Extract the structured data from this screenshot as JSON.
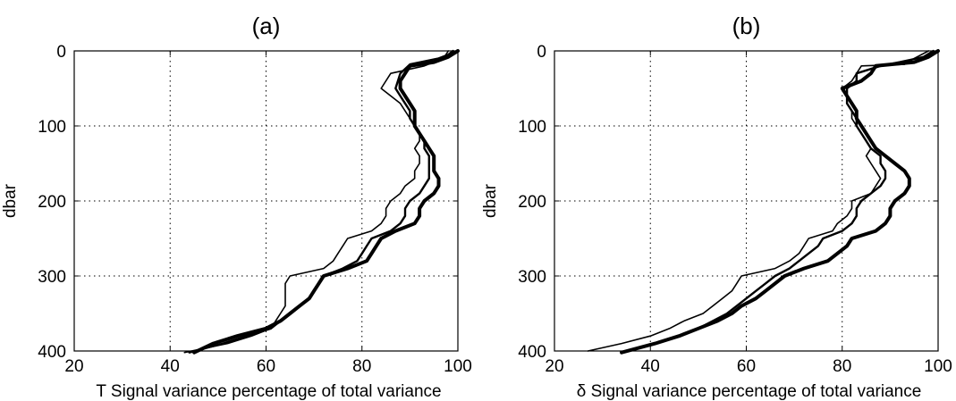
{
  "chart_data": [
    {
      "type": "line",
      "title": "(a)",
      "xlabel": "T Signal variance percentage of total variance",
      "ylabel": "dbar",
      "xlim": [
        20,
        100
      ],
      "ylim": [
        0,
        400
      ],
      "y_reversed": true,
      "grid": true,
      "grid_style": "dotted",
      "x_ticks": [
        "20",
        "40",
        "60",
        "80",
        "100"
      ],
      "y_ticks": [
        "0",
        "100",
        "200",
        "300",
        "400"
      ],
      "series": [
        {
          "style": "thin",
          "values": [
            [
              98,
              0
            ],
            [
              97,
              10
            ],
            [
              93,
              20
            ],
            [
              86,
              30
            ],
            [
              84,
              50
            ],
            [
              86,
              60
            ],
            [
              88,
              70
            ],
            [
              89,
              80
            ],
            [
              90,
              90
            ],
            [
              91,
              100
            ],
            [
              92,
              110
            ],
            [
              92,
              120
            ],
            [
              91,
              130
            ],
            [
              92,
              140
            ],
            [
              92,
              150
            ],
            [
              91,
              160
            ],
            [
              91,
              170
            ],
            [
              89,
              180
            ],
            [
              88,
              190
            ],
            [
              86,
              200
            ],
            [
              85,
              210
            ],
            [
              85,
              220
            ],
            [
              84,
              230
            ],
            [
              82,
              240
            ],
            [
              77,
              250
            ],
            [
              76,
              260
            ],
            [
              75,
              270
            ],
            [
              74,
              280
            ],
            [
              72,
              290
            ],
            [
              65,
              300
            ],
            [
              64,
              310
            ],
            [
              64,
              320
            ],
            [
              64,
              330
            ],
            [
              64,
              340
            ],
            [
              63,
              350
            ],
            [
              62,
              360
            ],
            [
              61,
              370
            ],
            [
              57,
              380
            ],
            [
              52,
              390
            ],
            [
              43,
              402
            ]
          ]
        },
        {
          "style": "medium",
          "values": [
            [
              99,
              0
            ],
            [
              98,
              5
            ],
            [
              96,
              10
            ],
            [
              90,
              18
            ],
            [
              88,
              30
            ],
            [
              87,
              50
            ],
            [
              88,
              60
            ],
            [
              89,
              70
            ],
            [
              90,
              80
            ],
            [
              90,
              90
            ],
            [
              91,
              100
            ],
            [
              92,
              110
            ],
            [
              93,
              120
            ],
            [
              93,
              130
            ],
            [
              94,
              140
            ],
            [
              94,
              150
            ],
            [
              94,
              160
            ],
            [
              94,
              170
            ],
            [
              93,
              180
            ],
            [
              92,
              190
            ],
            [
              90,
              200
            ],
            [
              89,
              210
            ],
            [
              89,
              220
            ],
            [
              88,
              230
            ],
            [
              86,
              240
            ],
            [
              82,
              250
            ],
            [
              81,
              260
            ],
            [
              80,
              270
            ],
            [
              79,
              280
            ],
            [
              76,
              290
            ],
            [
              72,
              300
            ],
            [
              71,
              310
            ],
            [
              70,
              320
            ],
            [
              69,
              330
            ],
            [
              67,
              340
            ],
            [
              65,
              350
            ],
            [
              63,
              360
            ],
            [
              61,
              370
            ],
            [
              56,
              380
            ],
            [
              51,
              390
            ],
            [
              44,
              402
            ]
          ]
        },
        {
          "style": "thick",
          "values": [
            [
              100,
              0
            ],
            [
              98,
              8
            ],
            [
              95,
              15
            ],
            [
              90,
              20
            ],
            [
              89,
              30
            ],
            [
              88,
              40
            ],
            [
              88,
              50
            ],
            [
              89,
              60
            ],
            [
              90,
              70
            ],
            [
              91,
              80
            ],
            [
              91,
              90
            ],
            [
              91,
              100
            ],
            [
              92,
              110
            ],
            [
              93,
              120
            ],
            [
              94,
              130
            ],
            [
              95,
              140
            ],
            [
              95,
              150
            ],
            [
              95,
              160
            ],
            [
              96,
              170
            ],
            [
              96,
              180
            ],
            [
              95,
              190
            ],
            [
              93,
              200
            ],
            [
              92,
              210
            ],
            [
              92,
              220
            ],
            [
              91,
              230
            ],
            [
              87,
              240
            ],
            [
              84,
              250
            ],
            [
              83,
              260
            ],
            [
              82,
              270
            ],
            [
              81,
              280
            ],
            [
              77,
              290
            ],
            [
              72,
              300
            ],
            [
              71,
              310
            ],
            [
              70,
              320
            ],
            [
              69,
              330
            ],
            [
              67,
              340
            ],
            [
              65,
              350
            ],
            [
              63,
              360
            ],
            [
              60,
              370
            ],
            [
              54,
              380
            ],
            [
              49,
              390
            ],
            [
              45,
              402
            ]
          ]
        }
      ]
    },
    {
      "type": "line",
      "title": "(b)",
      "xlabel": "δ Signal variance percentage of total variance",
      "ylabel": "dbar",
      "xlim": [
        20,
        100
      ],
      "ylim": [
        0,
        400
      ],
      "y_reversed": true,
      "grid": true,
      "grid_style": "dotted",
      "x_ticks": [
        "20",
        "40",
        "60",
        "80",
        "100"
      ],
      "y_ticks": [
        "0",
        "100",
        "200",
        "300",
        "400"
      ],
      "series": [
        {
          "style": "thin",
          "values": [
            [
              98,
              0
            ],
            [
              95,
              10
            ],
            [
              93,
              18
            ],
            [
              84,
              20
            ],
            [
              83,
              30
            ],
            [
              82,
              40
            ],
            [
              80,
              50
            ],
            [
              81,
              60
            ],
            [
              81,
              70
            ],
            [
              82,
              80
            ],
            [
              82,
              90
            ],
            [
              83,
              100
            ],
            [
              84,
              110
            ],
            [
              85,
              120
            ],
            [
              86,
              130
            ],
            [
              85,
              140
            ],
            [
              86,
              150
            ],
            [
              87,
              160
            ],
            [
              88,
              170
            ],
            [
              87,
              180
            ],
            [
              86,
              190
            ],
            [
              82,
              200
            ],
            [
              82,
              210
            ],
            [
              81,
              220
            ],
            [
              79,
              230
            ],
            [
              78,
              240
            ],
            [
              73,
              250
            ],
            [
              72,
              260
            ],
            [
              71,
              270
            ],
            [
              69,
              280
            ],
            [
              66,
              290
            ],
            [
              59,
              300
            ],
            [
              58,
              310
            ],
            [
              57,
              320
            ],
            [
              55,
              330
            ],
            [
              53,
              340
            ],
            [
              51,
              350
            ],
            [
              47,
              360
            ],
            [
              44,
              370
            ],
            [
              40,
              380
            ],
            [
              34,
              390
            ],
            [
              27,
              400
            ]
          ]
        },
        {
          "style": "medium",
          "values": [
            [
              99,
              0
            ],
            [
              97,
              8
            ],
            [
              92,
              15
            ],
            [
              88,
              20
            ],
            [
              83,
              30
            ],
            [
              83,
              40
            ],
            [
              81,
              50
            ],
            [
              81,
              60
            ],
            [
              81,
              70
            ],
            [
              82,
              80
            ],
            [
              83,
              90
            ],
            [
              83,
              100
            ],
            [
              84,
              110
            ],
            [
              85,
              120
            ],
            [
              86,
              130
            ],
            [
              88,
              140
            ],
            [
              88,
              150
            ],
            [
              89,
              160
            ],
            [
              89,
              170
            ],
            [
              88,
              180
            ],
            [
              86,
              190
            ],
            [
              84,
              200
            ],
            [
              83,
              210
            ],
            [
              83,
              220
            ],
            [
              82,
              230
            ],
            [
              80,
              240
            ],
            [
              76,
              250
            ],
            [
              75,
              260
            ],
            [
              73,
              270
            ],
            [
              71,
              280
            ],
            [
              69,
              290
            ],
            [
              66,
              300
            ],
            [
              64,
              310
            ],
            [
              62,
              320
            ],
            [
              60,
              330
            ],
            [
              58,
              340
            ],
            [
              56,
              350
            ],
            [
              53,
              360
            ],
            [
              50,
              370
            ],
            [
              46,
              380
            ],
            [
              41,
              390
            ],
            [
              34,
              402
            ]
          ]
        },
        {
          "style": "thick",
          "values": [
            [
              100,
              0
            ],
            [
              98,
              8
            ],
            [
              95,
              15
            ],
            [
              87,
              20
            ],
            [
              86,
              30
            ],
            [
              84,
              40
            ],
            [
              80,
              50
            ],
            [
              81,
              60
            ],
            [
              82,
              70
            ],
            [
              83,
              80
            ],
            [
              83,
              90
            ],
            [
              84,
              100
            ],
            [
              85,
              110
            ],
            [
              86,
              120
            ],
            [
              87,
              130
            ],
            [
              89,
              140
            ],
            [
              91,
              150
            ],
            [
              93,
              160
            ],
            [
              94,
              170
            ],
            [
              94,
              180
            ],
            [
              93,
              190
            ],
            [
              91,
              200
            ],
            [
              90,
              210
            ],
            [
              90,
              220
            ],
            [
              89,
              230
            ],
            [
              87,
              240
            ],
            [
              82,
              250
            ],
            [
              81,
              260
            ],
            [
              79,
              270
            ],
            [
              77,
              280
            ],
            [
              72,
              290
            ],
            [
              68,
              300
            ],
            [
              66,
              310
            ],
            [
              64,
              320
            ],
            [
              62,
              330
            ],
            [
              59,
              340
            ],
            [
              57,
              350
            ],
            [
              54,
              360
            ],
            [
              50,
              370
            ],
            [
              46,
              380
            ],
            [
              41,
              390
            ],
            [
              34,
              402
            ]
          ]
        }
      ]
    }
  ]
}
